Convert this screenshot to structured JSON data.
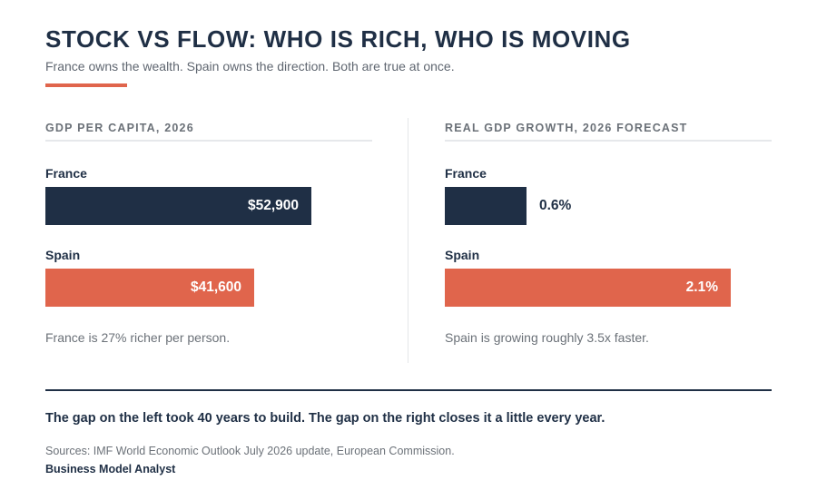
{
  "title": "STOCK VS FLOW: WHO IS RICH, WHO IS MOVING",
  "subtitle": "France owns the wealth. Spain owns the direction. Both are true at once.",
  "colors": {
    "dark": "#1f2f45",
    "accent": "#e0654c",
    "muted": "#6b7178"
  },
  "chart_data": [
    {
      "type": "bar",
      "orientation": "horizontal",
      "title": "GDP PER CAPITA, 2026",
      "categories": [
        "France",
        "Spain"
      ],
      "values": [
        52900,
        41600
      ],
      "value_labels": [
        "$52,900",
        "$41,600"
      ],
      "colors": [
        "#1f2f45",
        "#e0654c"
      ],
      "xlim": [
        0,
        65000
      ],
      "grid": false,
      "note": "France is 27% richer per person."
    },
    {
      "type": "bar",
      "orientation": "horizontal",
      "title": "REAL GDP GROWTH, 2026 FORECAST",
      "categories": [
        "France",
        "Spain"
      ],
      "values": [
        0.6,
        2.1
      ],
      "value_labels": [
        "0.6%",
        "2.1%"
      ],
      "colors": [
        "#1f2f45",
        "#e0654c"
      ],
      "xlim": [
        0,
        2.4
      ],
      "grid": false,
      "note": "Spain is growing roughly 3.5x faster."
    }
  ],
  "takeaway": "The gap on the left took 40 years to build. The gap on the right closes it a little every year.",
  "sources": "Sources: IMF World Economic Outlook July 2026 update, European Commission.",
  "brand": "Business Model Analyst"
}
